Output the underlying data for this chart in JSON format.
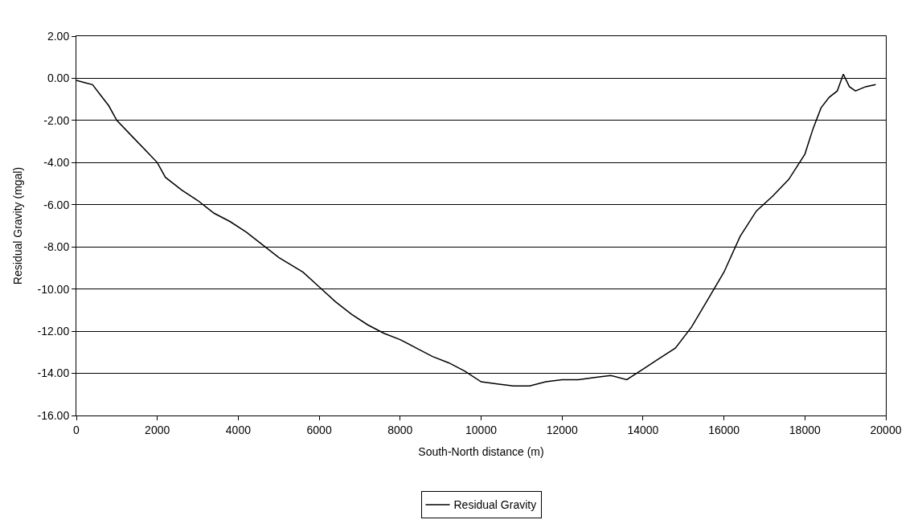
{
  "chart_data": {
    "type": "line",
    "xlabel": "South-North distance (m)",
    "ylabel": "Residual Gravity (mgal)",
    "x": [
      0,
      200,
      400,
      600,
      800,
      1000,
      1400,
      1800,
      2000,
      2200,
      2600,
      3000,
      3400,
      3800,
      4200,
      4600,
      5000,
      5600,
      6000,
      6400,
      6800,
      7200,
      7600,
      8000,
      8400,
      8800,
      9200,
      9600,
      10000,
      10400,
      10800,
      11200,
      11600,
      12000,
      12400,
      12800,
      13200,
      13600,
      14000,
      14400,
      14800,
      15200,
      15600,
      16000,
      16400,
      16800,
      17200,
      17600,
      18000,
      18200,
      18400,
      18600,
      18800,
      18950,
      19100,
      19250,
      19500,
      19750
    ],
    "series": [
      {
        "name": "Residual Gravity",
        "color": "#000000",
        "values": [
          -0.1,
          -0.2,
          -0.3,
          -0.8,
          -1.3,
          -2.0,
          -2.8,
          -3.6,
          -4.0,
          -4.7,
          -5.3,
          -5.8,
          -6.4,
          -6.8,
          -7.3,
          -7.9,
          -8.5,
          -9.2,
          -9.9,
          -10.6,
          -11.2,
          -11.7,
          -12.1,
          -12.4,
          -12.8,
          -13.2,
          -13.5,
          -13.9,
          -14.4,
          -14.5,
          -14.6,
          -14.6,
          -14.4,
          -14.3,
          -14.3,
          -14.2,
          -14.1,
          -14.3,
          -13.8,
          -13.3,
          -12.8,
          -11.8,
          -10.5,
          -9.2,
          -7.5,
          -6.3,
          -5.6,
          -4.8,
          -3.6,
          -2.4,
          -1.4,
          -0.9,
          -0.6,
          0.2,
          -0.4,
          -0.6,
          -0.4,
          -0.3
        ]
      }
    ],
    "xlim": [
      0,
      20000
    ],
    "xticks": [
      0,
      2000,
      4000,
      6000,
      8000,
      10000,
      12000,
      14000,
      16000,
      18000,
      20000
    ],
    "ylim": [
      -16,
      2
    ],
    "yticks": [
      {
        "value": 2,
        "label": "2.00"
      },
      {
        "value": 0,
        "label": "0.00"
      },
      {
        "value": -2,
        "label": "-2.00"
      },
      {
        "value": -4,
        "label": "-4.00"
      },
      {
        "value": -6,
        "label": "-6.00"
      },
      {
        "value": -8,
        "label": "-8.00"
      },
      {
        "value": -10,
        "label": "-10.00"
      },
      {
        "value": -12,
        "label": "-12.00"
      },
      {
        "value": -14,
        "label": "-14.00"
      },
      {
        "value": -16,
        "label": "-16.00"
      }
    ],
    "grid": "y",
    "legend": "bottom",
    "marker": "none",
    "line_style": "solid"
  }
}
